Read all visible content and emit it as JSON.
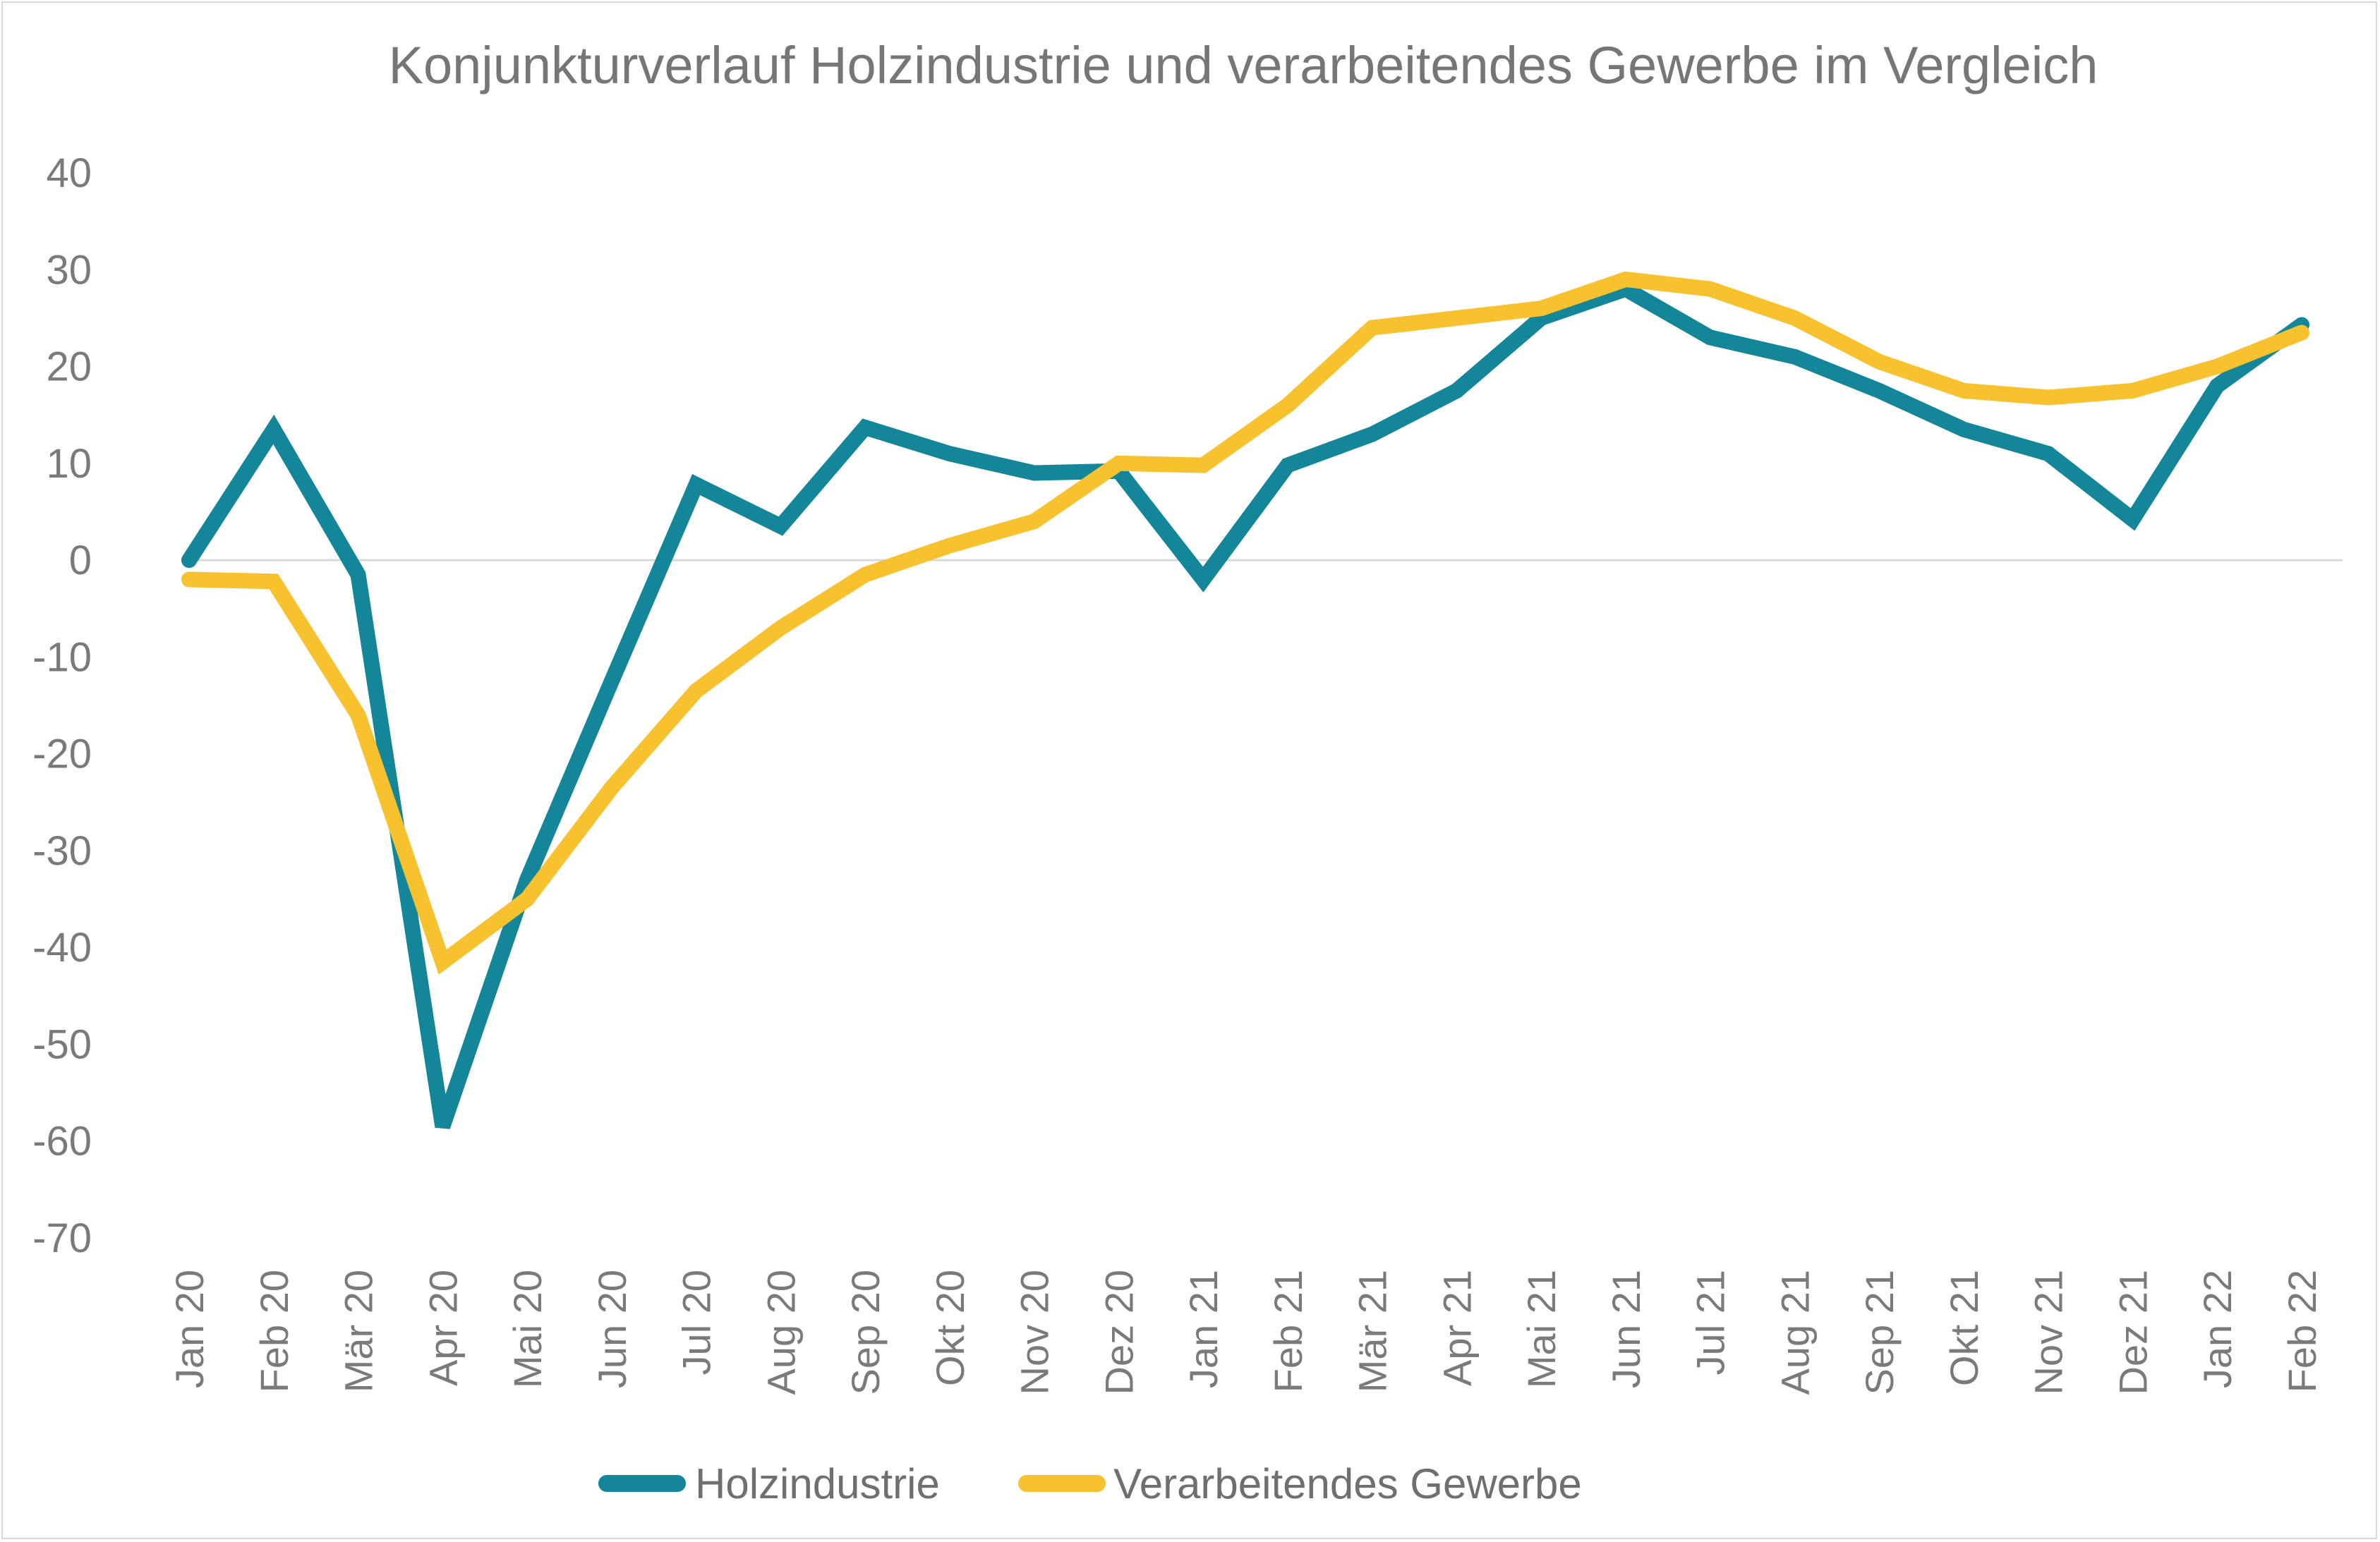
{
  "chart_data": {
    "type": "line",
    "title": "Konjunkturverlauf Holzindustrie und verarbeitendes Gewerbe im Vergleich",
    "xlabel": "",
    "ylabel": "",
    "ylim": [
      -70,
      40
    ],
    "yticks": [
      "40",
      "30",
      "20",
      "10",
      "0",
      "-10",
      "-20",
      "-30",
      "-40",
      "-50",
      "-60",
      "-70"
    ],
    "categories": [
      "Jan 20",
      "Feb 20",
      "Mär 20",
      "Apr 20",
      "Mai 20",
      "Jun 20",
      "Jul 20",
      "Aug 20",
      "Sep 20",
      "Okt 20",
      "Nov 20",
      "Dez 20",
      "Jan 21",
      "Feb 21",
      "Mär 21",
      "Apr 21",
      "Mai 21",
      "Jun 21",
      "Jul 21",
      "Aug 21",
      "Sep 21",
      "Okt 21",
      "Nov 21",
      "Dez 21",
      "Jan 22",
      "Feb 22"
    ],
    "grid": false,
    "legend_position": "bottom",
    "series": [
      {
        "name": "Holzindustrie",
        "color": "#13869a",
        "values": [
          0,
          13.5,
          -1.5,
          -58.5,
          -33,
          -12.5,
          7.8,
          3.5,
          13.7,
          11,
          9,
          9.2,
          -2,
          9.8,
          13,
          17.5,
          25,
          28,
          23,
          21,
          17.5,
          13.5,
          11,
          4.2,
          18,
          24.3
        ]
      },
      {
        "name": "Verarbeitendes Gewerbe",
        "color": "#f8c12e",
        "values": [
          -2,
          -2.2,
          -16,
          -41.5,
          -35,
          -23.5,
          -13.5,
          -7,
          -1.5,
          1.5,
          4,
          10,
          9.8,
          16,
          24,
          25,
          26,
          29,
          28,
          25,
          20.5,
          17.5,
          16.8,
          17.5,
          20,
          23.5
        ]
      }
    ]
  }
}
